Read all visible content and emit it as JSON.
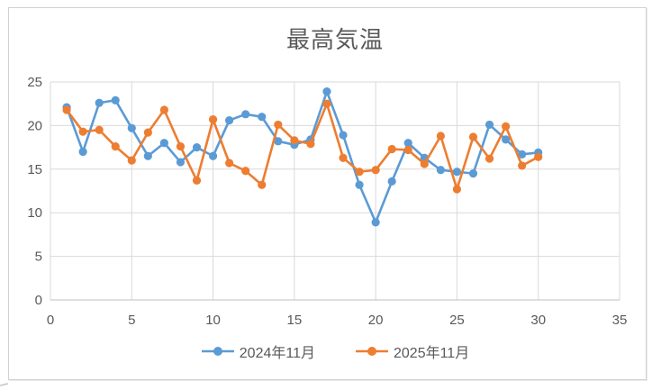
{
  "chart_data": {
    "type": "line",
    "title": "最高気温",
    "x": [
      1,
      2,
      3,
      4,
      5,
      6,
      7,
      8,
      9,
      10,
      11,
      12,
      13,
      14,
      15,
      16,
      17,
      18,
      19,
      20,
      21,
      22,
      23,
      24,
      25,
      26,
      27,
      28,
      29,
      30
    ],
    "series": [
      {
        "name": "2024年11月",
        "color": "#5B9BD5",
        "values": [
          22.1,
          17.0,
          22.6,
          22.9,
          19.7,
          16.5,
          18.0,
          15.8,
          17.5,
          16.5,
          20.6,
          21.3,
          21.0,
          18.2,
          17.8,
          18.4,
          23.9,
          18.9,
          13.2,
          8.9,
          13.6,
          18.0,
          16.3,
          14.9,
          14.7,
          14.5,
          20.1,
          18.4,
          16.7,
          16.9
        ]
      },
      {
        "name": "2025年11月",
        "color": "#ED7D31",
        "values": [
          21.8,
          19.3,
          19.5,
          17.6,
          16.0,
          19.2,
          21.8,
          17.6,
          13.7,
          20.7,
          15.7,
          14.8,
          13.2,
          20.1,
          18.3,
          17.9,
          22.5,
          16.3,
          14.7,
          14.9,
          17.3,
          17.2,
          15.6,
          18.8,
          12.7,
          18.7,
          16.2,
          19.9,
          15.4,
          16.4
        ]
      }
    ],
    "xlim": [
      0,
      35
    ],
    "ylim": [
      0,
      25
    ],
    "x_ticks": [
      0,
      5,
      10,
      15,
      20,
      25,
      30,
      35
    ],
    "y_ticks": [
      0,
      5,
      10,
      15,
      20,
      25
    ],
    "grid": true,
    "legend_position": "bottom",
    "marker": "circle"
  },
  "styles": {
    "title_color": "#595959",
    "axis_label_color": "#595959",
    "gridline_color": "#d9d9d9",
    "axis_line_color": "#bfbfbf",
    "frame_border_color": "#d2d2d2",
    "background": "#ffffff"
  }
}
